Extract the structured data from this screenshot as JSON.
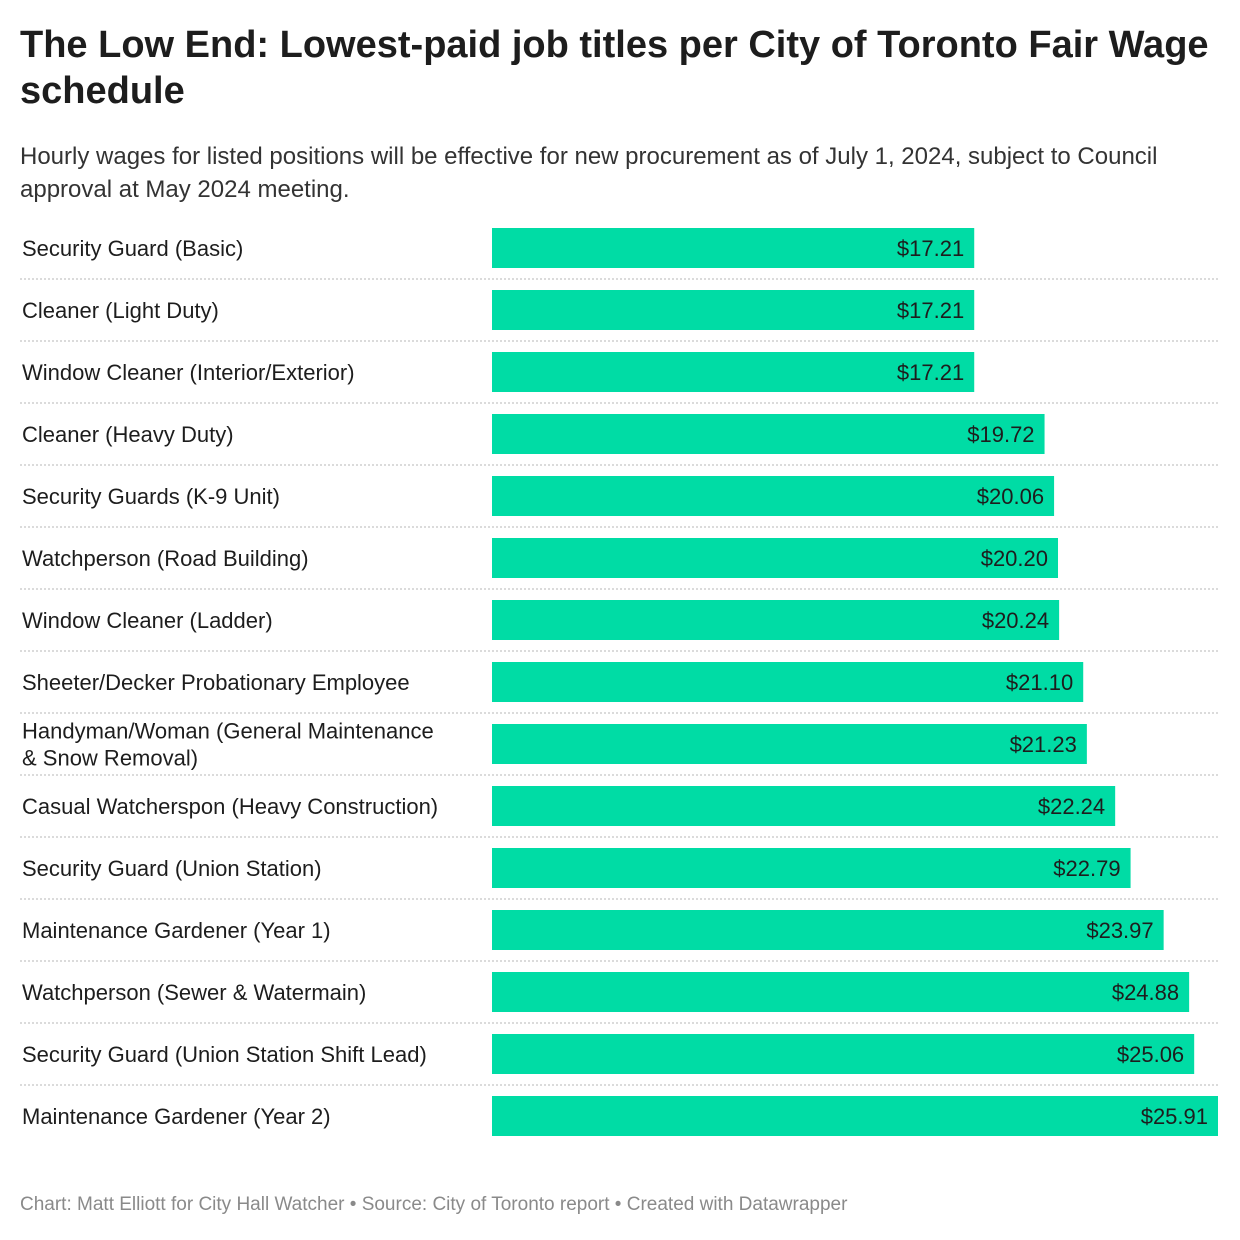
{
  "chart_data": {
    "type": "bar",
    "orientation": "horizontal",
    "title": "The Low End: Lowest-paid job titles per City of Toronto Fair Wage schedule",
    "subtitle": "Hourly wages for listed positions will be effective for new procurement as of July 1, 2024, subject to Council approval at May 2024 meeting.",
    "categories": [
      [
        "Security Guard (Basic)"
      ],
      [
        "Cleaner (Light Duty)"
      ],
      [
        "Window Cleaner (Interior/Exterior)"
      ],
      [
        "Cleaner (Heavy Duty)"
      ],
      [
        "Security Guards (K-9 Unit)"
      ],
      [
        "Watchperson (Road Building)"
      ],
      [
        "Window Cleaner (Ladder)"
      ],
      [
        "Sheeter/Decker Probationary Employee"
      ],
      [
        "Handyman/Woman (General Maintenance",
        "& Snow Removal)"
      ],
      [
        "Casual Watcherspon (Heavy Construction)"
      ],
      [
        "Security Guard (Union Station)"
      ],
      [
        "Maintenance Gardener (Year 1)"
      ],
      [
        "Watchperson (Sewer & Watermain)"
      ],
      [
        "Security Guard (Union Station Shift Lead)"
      ],
      [
        "Maintenance Gardener (Year 2)"
      ]
    ],
    "values": [
      17.21,
      17.21,
      17.21,
      19.72,
      20.06,
      20.2,
      20.24,
      21.1,
      21.23,
      22.24,
      22.79,
      23.97,
      24.88,
      25.06,
      25.91
    ],
    "value_labels": [
      "$17.21",
      "$17.21",
      "$17.21",
      "$19.72",
      "$20.06",
      "$20.20",
      "$20.24",
      "$21.10",
      "$21.23",
      "$22.24",
      "$22.79",
      "$23.97",
      "$24.88",
      "$25.06",
      "$25.91"
    ],
    "xlim": [
      0,
      25.91
    ],
    "bar_color": "#00dca5",
    "grid": false,
    "row_separators": "dotted"
  },
  "footer": "Chart: Matt Elliott for City Hall Watcher • Source: City of Toronto report • Created with Datawrapper"
}
